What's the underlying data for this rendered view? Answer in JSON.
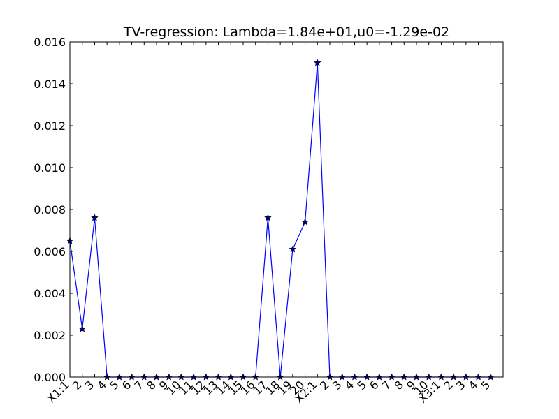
{
  "chart_data": {
    "type": "line",
    "title": "TV-regression: Lambda=1.84e+01,u0=-1.29e-02",
    "categories": [
      "X1:1",
      "2",
      "3",
      "4",
      "5",
      "6",
      "7",
      "8",
      "9",
      "10",
      "11",
      "12",
      "13",
      "14",
      "15",
      "16",
      "17",
      "18",
      "19",
      "20",
      "X2:1",
      "2",
      "3",
      "4",
      "5",
      "6",
      "7",
      "8",
      "9",
      "10",
      "X3:1",
      "2",
      "3",
      "4",
      "5"
    ],
    "series": [
      {
        "color": "#0000ff",
        "marker_color": "#000080",
        "values": [
          0.0065,
          0.0023,
          0.0076,
          0,
          0,
          0,
          0,
          0,
          0,
          0,
          0,
          0,
          0,
          0,
          0,
          0,
          0.0076,
          0,
          0.0061,
          0.0074,
          0.015,
          0,
          0,
          0,
          0,
          0,
          0,
          0,
          0,
          0,
          0,
          0,
          0,
          0,
          0
        ]
      }
    ],
    "ylim": [
      0,
      0.016
    ],
    "yticks": [
      {
        "value": 0,
        "label": "0.000"
      },
      {
        "value": 0.002,
        "label": "0.002"
      },
      {
        "value": 0.004,
        "label": "0.004"
      },
      {
        "value": 0.006,
        "label": "0.006"
      },
      {
        "value": 0.008,
        "label": "0.008"
      },
      {
        "value": 0.01,
        "label": "0.010"
      },
      {
        "value": 0.012,
        "label": "0.012"
      },
      {
        "value": 0.014,
        "label": "0.014"
      },
      {
        "value": 0.016,
        "label": "0.016"
      }
    ]
  }
}
